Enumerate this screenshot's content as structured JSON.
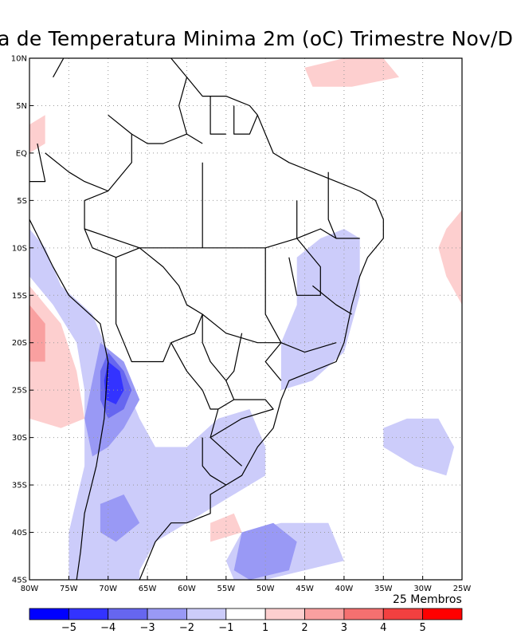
{
  "title": "ia de Temperatura Minima 2m (oC) Trimestre Nov/D",
  "footer": {
    "members": "25 Membros"
  },
  "axes": {
    "lon_min": -80,
    "lon_max": -25,
    "lat_min": -45,
    "lat_max": 10,
    "y_ticks": [
      {
        "lat": 10,
        "label": "10N"
      },
      {
        "lat": 5,
        "label": "5N"
      },
      {
        "lat": 0,
        "label": "EQ"
      },
      {
        "lat": -5,
        "label": "5S"
      },
      {
        "lat": -10,
        "label": "10S"
      },
      {
        "lat": -15,
        "label": "15S"
      },
      {
        "lat": -20,
        "label": "20S"
      },
      {
        "lat": -25,
        "label": "25S"
      },
      {
        "lat": -30,
        "label": "30S"
      },
      {
        "lat": -35,
        "label": "35S"
      },
      {
        "lat": -40,
        "label": "40S"
      },
      {
        "lat": -45,
        "label": "45S"
      }
    ],
    "x_ticks": [
      {
        "lon": -80,
        "label": "80W"
      },
      {
        "lon": -75,
        "label": "75W"
      },
      {
        "lon": -70,
        "label": "70W"
      },
      {
        "lon": -65,
        "label": "65W"
      },
      {
        "lon": -60,
        "label": "60W"
      },
      {
        "lon": -55,
        "label": "55W"
      },
      {
        "lon": -50,
        "label": "50W"
      },
      {
        "lon": -45,
        "label": "45W"
      },
      {
        "lon": -40,
        "label": "40W"
      },
      {
        "lon": -35,
        "label": "35W"
      },
      {
        "lon": -30,
        "label": "30W"
      },
      {
        "lon": -25,
        "label": "25W"
      }
    ]
  },
  "colorbar": {
    "colors": [
      "#0000ff",
      "#3333ff",
      "#6666f0",
      "#9999f5",
      "#ccccfa",
      "#ffffff",
      "#fdcfcf",
      "#f9a0a0",
      "#f57070",
      "#f24040",
      "#ff0000"
    ],
    "labels": [
      "−5",
      "−4",
      "−3",
      "−2",
      "−1",
      "1",
      "2",
      "3",
      "4",
      "5"
    ]
  },
  "fields": [
    {
      "level": -1,
      "color": "#ccccfa",
      "poly": [
        [
          -80,
          -8
        ],
        [
          -78,
          -10
        ],
        [
          -76,
          -14
        ],
        [
          -72,
          -17
        ],
        [
          -70,
          -21
        ],
        [
          -68,
          -24
        ],
        [
          -66,
          -28
        ],
        [
          -64,
          -31
        ],
        [
          -60,
          -31
        ],
        [
          -56,
          -28
        ],
        [
          -52,
          -27
        ],
        [
          -50,
          -31
        ],
        [
          -50,
          -34
        ],
        [
          -52,
          -35
        ],
        [
          -56,
          -37
        ],
        [
          -60,
          -39
        ],
        [
          -64,
          -41
        ],
        [
          -66,
          -44
        ],
        [
          -66,
          -45
        ],
        [
          -75,
          -45
        ],
        [
          -75,
          -40
        ],
        [
          -73,
          -33
        ],
        [
          -73,
          -25
        ],
        [
          -74,
          -20
        ],
        [
          -77,
          -16
        ],
        [
          -80,
          -13
        ]
      ]
    },
    {
      "level": -1,
      "color": "#ccccfa",
      "poly": [
        [
          -53,
          -40
        ],
        [
          -48,
          -39
        ],
        [
          -42,
          -39
        ],
        [
          -40,
          -43
        ],
        [
          -45,
          -44
        ],
        [
          -50,
          -45
        ],
        [
          -54,
          -45
        ],
        [
          -55,
          -43
        ]
      ]
    },
    {
      "level": -1,
      "color": "#ccccfa",
      "poly": [
        [
          -46,
          -11
        ],
        [
          -43,
          -9
        ],
        [
          -40,
          -8
        ],
        [
          -38,
          -9
        ],
        [
          -38,
          -15
        ],
        [
          -40,
          -21
        ],
        [
          -44,
          -24
        ],
        [
          -48,
          -25
        ],
        [
          -48,
          -20
        ],
        [
          -46,
          -16
        ]
      ]
    },
    {
      "level": -1,
      "color": "#ccccfa",
      "poly": [
        [
          -35,
          -29
        ],
        [
          -32,
          -28
        ],
        [
          -28,
          -28
        ],
        [
          -26,
          -31
        ],
        [
          -27,
          -34
        ],
        [
          -31,
          -33
        ],
        [
          -35,
          -31
        ]
      ]
    },
    {
      "level": -2,
      "color": "#9999f5",
      "poly": [
        [
          -71,
          -20
        ],
        [
          -68,
          -22
        ],
        [
          -66,
          -26
        ],
        [
          -68,
          -29
        ],
        [
          -70,
          -31
        ],
        [
          -72,
          -32
        ],
        [
          -73,
          -28
        ],
        [
          -72,
          -24
        ]
      ]
    },
    {
      "level": -2,
      "color": "#9999f5",
      "poly": [
        [
          -71,
          -37
        ],
        [
          -68,
          -36
        ],
        [
          -66,
          -39
        ],
        [
          -69,
          -41
        ],
        [
          -71,
          -40
        ]
      ]
    },
    {
      "level": -2,
      "color": "#9999f5",
      "poly": [
        [
          -53,
          -40
        ],
        [
          -49,
          -39
        ],
        [
          -46,
          -41
        ],
        [
          -47,
          -44
        ],
        [
          -52,
          -45
        ],
        [
          -54,
          -44
        ]
      ]
    },
    {
      "level": -3,
      "color": "#6666f0",
      "poly": [
        [
          -70,
          -21
        ],
        [
          -68,
          -23
        ],
        [
          -67,
          -25
        ],
        [
          -68,
          -27
        ],
        [
          -70,
          -28
        ],
        [
          -71,
          -26
        ],
        [
          -71,
          -23
        ]
      ]
    },
    {
      "level": -4,
      "color": "#3333ff",
      "poly": [
        [
          -70,
          -22
        ],
        [
          -68.5,
          -23
        ],
        [
          -68,
          -25
        ],
        [
          -69,
          -26.5
        ],
        [
          -70.3,
          -26
        ],
        [
          -70.5,
          -24
        ]
      ]
    },
    {
      "level": 1,
      "color": "#fdcfcf",
      "poly": [
        [
          -80,
          -14
        ],
        [
          -78,
          -16
        ],
        [
          -76,
          -18
        ],
        [
          -74,
          -23
        ],
        [
          -73,
          -28
        ],
        [
          -76,
          -29
        ],
        [
          -80,
          -28
        ]
      ]
    },
    {
      "level": 1,
      "color": "#fdcfcf",
      "poly": [
        [
          -80,
          3
        ],
        [
          -78,
          4
        ],
        [
          -78,
          1
        ],
        [
          -80,
          0
        ]
      ]
    },
    {
      "level": 1,
      "color": "#fdcfcf",
      "poly": [
        [
          -45,
          9
        ],
        [
          -40,
          10
        ],
        [
          -35,
          10
        ],
        [
          -33,
          8
        ],
        [
          -39,
          7
        ],
        [
          -44,
          7
        ]
      ]
    },
    {
      "level": 1,
      "color": "#fdcfcf",
      "poly": [
        [
          -27,
          -8
        ],
        [
          -25,
          -6
        ],
        [
          -25,
          -16
        ],
        [
          -27,
          -13
        ],
        [
          -28,
          -10
        ]
      ]
    },
    {
      "level": 1,
      "color": "#fdcfcf",
      "poly": [
        [
          -57,
          -39
        ],
        [
          -54,
          -38
        ],
        [
          -53,
          -40
        ],
        [
          -57,
          -41
        ]
      ]
    },
    {
      "level": 2,
      "color": "#f9a0a0",
      "poly": [
        [
          -80,
          -16
        ],
        [
          -78,
          -18
        ],
        [
          -78,
          -22
        ],
        [
          -80,
          -22
        ]
      ]
    }
  ],
  "borders": [
    [
      [
        -79,
        1
      ],
      [
        -78,
        -3
      ],
      [
        -80,
        -3
      ],
      [
        -81,
        -5
      ],
      [
        -80,
        -7
      ],
      [
        -77,
        -12
      ],
      [
        -75,
        -15
      ],
      [
        -71,
        -18
      ],
      [
        -70,
        -22
      ],
      [
        -70.5,
        -28
      ],
      [
        -71.5,
        -33
      ],
      [
        -73,
        -38
      ],
      [
        -73.5,
        -42
      ],
      [
        -74,
        -45
      ]
    ],
    [
      [
        -77,
        8
      ],
      [
        -75,
        11
      ],
      [
        -72,
        12
      ],
      [
        -68,
        11
      ],
      [
        -64,
        10.5
      ],
      [
        -62,
        10
      ],
      [
        -60,
        8
      ],
      [
        -58,
        6
      ],
      [
        -55,
        6
      ],
      [
        -52,
        5
      ],
      [
        -51,
        4
      ],
      [
        -50,
        2
      ],
      [
        -49,
        0
      ],
      [
        -47,
        -1
      ],
      [
        -44,
        -2
      ],
      [
        -41,
        -3
      ],
      [
        -38,
        -4
      ],
      [
        -36,
        -5
      ],
      [
        -35,
        -7
      ],
      [
        -35,
        -9
      ],
      [
        -37,
        -11
      ],
      [
        -38,
        -13
      ],
      [
        -39,
        -16
      ],
      [
        -40,
        -20
      ],
      [
        -41,
        -22
      ],
      [
        -44,
        -23
      ],
      [
        -47,
        -24
      ],
      [
        -48,
        -26
      ],
      [
        -49,
        -29
      ],
      [
        -51,
        -31
      ],
      [
        -53,
        -34
      ],
      [
        -55,
        -35
      ],
      [
        -57,
        -36
      ],
      [
        -57,
        -38
      ],
      [
        -60,
        -39
      ],
      [
        -62,
        -39
      ],
      [
        -64,
        -41
      ],
      [
        -65,
        -43
      ],
      [
        -66,
        -45
      ]
    ],
    [
      [
        -70,
        4
      ],
      [
        -67,
        2
      ],
      [
        -67,
        -1
      ],
      [
        -70,
        -4
      ],
      [
        -73,
        -3
      ],
      [
        -75,
        -2
      ],
      [
        -78,
        0
      ]
    ],
    [
      [
        -70,
        -4
      ],
      [
        -73,
        -5
      ],
      [
        -73,
        -8
      ],
      [
        -72,
        -10
      ],
      [
        -69,
        -11
      ],
      [
        -66,
        -10
      ],
      [
        -63,
        -12
      ],
      [
        -61,
        -14
      ],
      [
        -60,
        -16
      ],
      [
        -58,
        -17
      ],
      [
        -58,
        -20
      ],
      [
        -57,
        -22
      ],
      [
        -55,
        -24
      ],
      [
        -54,
        -26
      ],
      [
        -56,
        -27
      ],
      [
        -57,
        -30
      ],
      [
        -53,
        -33
      ]
    ],
    [
      [
        -69,
        -11
      ],
      [
        -69,
        -13
      ],
      [
        -69,
        -15
      ],
      [
        -69,
        -18
      ],
      [
        -68,
        -20
      ],
      [
        -67,
        -22
      ],
      [
        -65,
        -22
      ],
      [
        -63,
        -22
      ],
      [
        -62,
        -20
      ],
      [
        -59,
        -19
      ],
      [
        -58,
        -17
      ]
    ],
    [
      [
        -62,
        -20
      ],
      [
        -60,
        -23
      ],
      [
        -58,
        -25
      ],
      [
        -57,
        -27
      ],
      [
        -56,
        -27
      ]
    ],
    [
      [
        -58,
        -30
      ],
      [
        -58,
        -33
      ],
      [
        -57,
        -34
      ],
      [
        -55,
        -35
      ]
    ],
    [
      [
        -60,
        8
      ],
      [
        -61,
        5
      ],
      [
        -60,
        2
      ],
      [
        -58,
        1
      ]
    ],
    [
      [
        -57,
        6
      ],
      [
        -57,
        2
      ],
      [
        -55,
        2
      ]
    ],
    [
      [
        -54,
        5
      ],
      [
        -54,
        2
      ],
      [
        -52,
        2
      ],
      [
        -51,
        4
      ]
    ],
    [
      [
        -67,
        2
      ],
      [
        -65,
        1
      ],
      [
        -63,
        1
      ],
      [
        -60,
        2
      ]
    ],
    [
      [
        -73,
        -8
      ],
      [
        -66,
        -10
      ],
      [
        -62,
        -10
      ],
      [
        -50,
        -10
      ],
      [
        -46,
        -9
      ],
      [
        -43,
        -8
      ],
      [
        -41,
        -9
      ],
      [
        -38,
        -9
      ]
    ],
    [
      [
        -58,
        -1
      ],
      [
        -58,
        -8
      ],
      [
        -58,
        -10
      ]
    ],
    [
      [
        -50,
        -10
      ],
      [
        -50,
        -17
      ],
      [
        -48,
        -20
      ],
      [
        -45,
        -21
      ],
      [
        -41,
        -20
      ]
    ],
    [
      [
        -58,
        -17
      ],
      [
        -55,
        -19
      ],
      [
        -51,
        -20
      ],
      [
        -48,
        -20
      ]
    ],
    [
      [
        -53,
        -19
      ],
      [
        -54,
        -23
      ],
      [
        -55,
        -24
      ]
    ],
    [
      [
        -54,
        -26
      ],
      [
        -50,
        -26
      ],
      [
        -49,
        -27
      ],
      [
        -53,
        -28
      ],
      [
        -57,
        -30
      ]
    ],
    [
      [
        -46,
        -5
      ],
      [
        -46,
        -9
      ],
      [
        -43,
        -12
      ],
      [
        -43,
        -15
      ],
      [
        -46,
        -15
      ],
      [
        -47,
        -11
      ]
    ],
    [
      [
        -42,
        -2
      ],
      [
        -42,
        -7
      ],
      [
        -41,
        -9
      ]
    ],
    [
      [
        -44,
        -14
      ],
      [
        -41,
        -16
      ],
      [
        -39,
        -17
      ]
    ],
    [
      [
        -48,
        -20
      ],
      [
        -50,
        -22
      ],
      [
        -48,
        -24
      ]
    ]
  ]
}
